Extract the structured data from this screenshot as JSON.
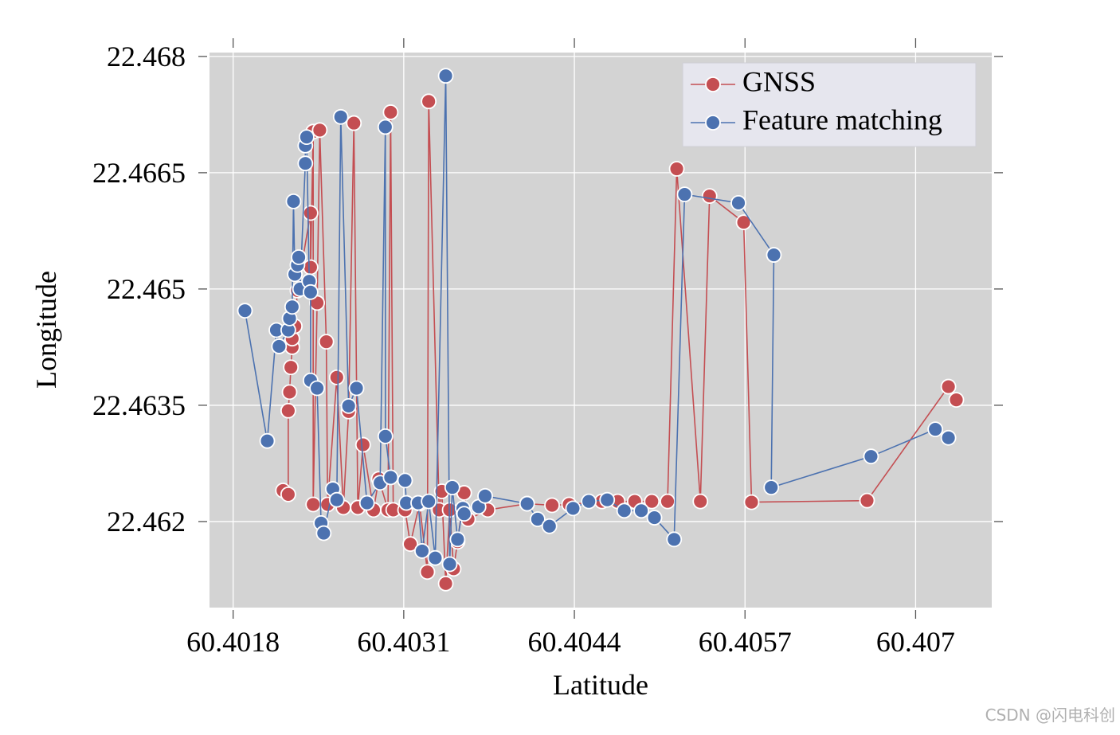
{
  "chart_data": {
    "type": "line",
    "x_label": "Latitude",
    "y_label": "Longitude",
    "xlim": [
      60.40162,
      60.40758
    ],
    "ylim": [
      22.46089,
      22.46805
    ],
    "xticks": [
      60.4018,
      60.4031,
      60.4044,
      60.4057,
      60.407
    ],
    "yticks": [
      22.462,
      22.4635,
      22.465,
      22.4665,
      22.468
    ],
    "grid": true,
    "legend": "upper right",
    "series": [
      {
        "name": "GNSS",
        "color": "#c44e52",
        "x": [
          60.40218,
          60.40222,
          60.40222,
          60.40223,
          60.40224,
          60.40225,
          60.40225,
          60.40227,
          60.40229,
          60.40239,
          60.40239,
          60.40241,
          60.40241,
          60.40244,
          60.40246,
          60.40251,
          60.40252,
          60.40259,
          60.40264,
          60.40268,
          60.40272,
          60.40275,
          60.40279,
          60.40287,
          60.40291,
          60.40298,
          60.403,
          60.40302,
          60.40311,
          60.40315,
          60.40322,
          60.40328,
          60.40329,
          60.40337,
          60.40339,
          60.40342,
          60.40345,
          60.40348,
          60.40351,
          60.40356,
          60.40359,
          60.40374,
          60.40404,
          60.40423,
          60.40436,
          60.40461,
          60.40473,
          60.40486,
          60.40499,
          60.40511,
          60.40518,
          60.40536,
          60.40543,
          60.40569,
          60.40575,
          60.40663,
          60.40725,
          60.40731
        ],
        "values": [
          22.4624,
          22.46235,
          22.46343,
          22.46367,
          22.46399,
          22.46425,
          22.46436,
          22.46452,
          22.46498,
          22.46598,
          22.46528,
          22.46703,
          22.46222,
          22.46482,
          22.46705,
          22.46432,
          22.46222,
          22.46386,
          22.46218,
          22.46342,
          22.46714,
          22.46218,
          22.46299,
          22.46215,
          22.46255,
          22.46215,
          22.46728,
          22.46215,
          22.46215,
          22.46171,
          22.46223,
          22.46135,
          22.46742,
          22.46215,
          22.46239,
          22.4612,
          22.46215,
          22.46139,
          22.46174,
          22.46237,
          22.46203,
          22.46215,
          22.46223,
          22.46221,
          22.46222,
          22.46226,
          22.46226,
          22.46226,
          22.46226,
          22.46226,
          22.46655,
          22.46226,
          22.4662,
          22.46586,
          22.46225,
          22.46227,
          22.46374,
          22.46357
        ]
      },
      {
        "name": "Feature matching",
        "color": "#4c72b0",
        "x": [
          60.40189,
          60.40206,
          60.40213,
          60.40215,
          60.40222,
          60.40223,
          60.40225,
          60.40226,
          60.40227,
          60.40229,
          60.4023,
          60.40231,
          60.40235,
          60.40235,
          60.40236,
          60.40238,
          60.40239,
          60.40239,
          60.40244,
          60.40247,
          60.40249,
          60.40256,
          60.40259,
          60.40262,
          60.40268,
          60.40274,
          60.40282,
          60.40292,
          60.40296,
          60.40296,
          60.403,
          60.40311,
          60.40312,
          60.40321,
          60.40324,
          60.40329,
          60.40334,
          60.40342,
          60.40345,
          60.40347,
          60.40351,
          60.40355,
          60.40356,
          60.40367,
          60.40372,
          60.40404,
          60.40412,
          60.40421,
          60.40439,
          60.40451,
          60.40465,
          60.40478,
          60.40491,
          60.40501,
          60.40516,
          60.40524,
          60.40565,
          60.40592,
          60.4059,
          60.40666,
          60.40715,
          60.40725
        ],
        "values": [
          22.46472,
          22.46304,
          22.46447,
          22.46426,
          22.46447,
          22.46462,
          22.46477,
          22.46613,
          22.46519,
          22.46531,
          22.46541,
          22.465,
          22.46662,
          22.46685,
          22.46696,
          22.4651,
          22.46496,
          22.46382,
          22.46372,
          22.46198,
          22.46185,
          22.46242,
          22.46228,
          22.46722,
          22.46349,
          22.46372,
          22.46224,
          22.4625,
          22.46709,
          22.4631,
          22.46257,
          22.46253,
          22.46224,
          22.46224,
          22.46162,
          22.46226,
          22.46153,
          22.46775,
          22.46145,
          22.46244,
          22.46177,
          22.46217,
          22.4621,
          22.46219,
          22.46233,
          22.46223,
          22.46203,
          22.46194,
          22.46217,
          22.46226,
          22.46228,
          22.46214,
          22.46214,
          22.46205,
          22.46177,
          22.46622,
          22.46611,
          22.46544,
          22.46244,
          22.46284,
          22.46319,
          22.46308
        ]
      }
    ]
  },
  "watermark": "CSDN @闪电科创"
}
